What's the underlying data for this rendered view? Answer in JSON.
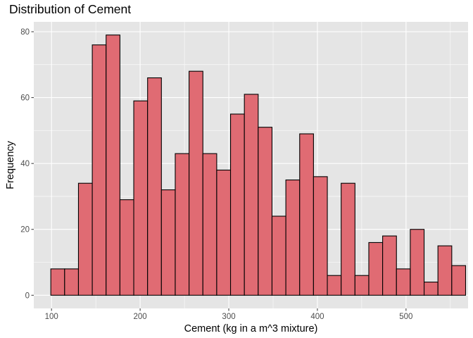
{
  "chart_data": {
    "type": "bar",
    "title": "Distribution of Cement",
    "xlabel": "Cement (kg in a m^3 mixture)",
    "ylabel": "Frequency",
    "xlim": [
      80,
      570
    ],
    "ylim": [
      -4,
      83
    ],
    "x_ticks": [
      100,
      200,
      300,
      400,
      500
    ],
    "y_ticks": [
      0,
      20,
      40,
      60,
      80
    ],
    "bin_width": 15.6,
    "bin_start": 99.2,
    "values": [
      8,
      8,
      34,
      76,
      79,
      29,
      59,
      66,
      32,
      43,
      68,
      43,
      38,
      55,
      61,
      51,
      24,
      35,
      49,
      36,
      6,
      34,
      6,
      16,
      18,
      8,
      20,
      4,
      15,
      9
    ],
    "grid": true,
    "colors": {
      "panel": "#e5e5e5",
      "grid": "#ffffff",
      "bar_fill": "#e06b73",
      "bar_stroke": "#000000"
    }
  }
}
